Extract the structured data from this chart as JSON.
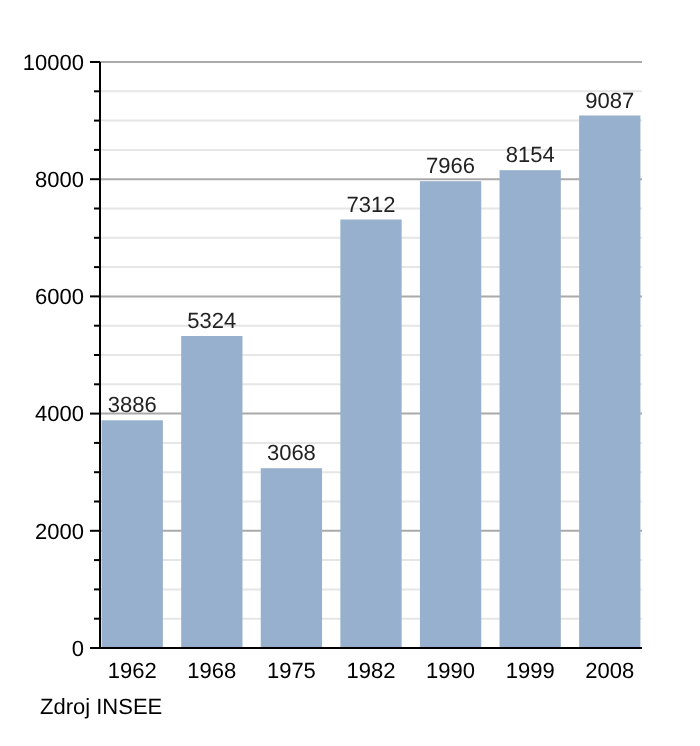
{
  "chart_data": {
    "type": "bar",
    "categories": [
      "1962",
      "1968",
      "1975",
      "1982",
      "1990",
      "1999",
      "2008"
    ],
    "values": [
      3886,
      5324,
      3068,
      7312,
      7966,
      8154,
      9087
    ],
    "color": "#97b0cd",
    "ylim": [
      0,
      10000
    ],
    "yticks": [
      0,
      {
        "value": 500,
        "label": null
      },
      {
        "value": 1000,
        "label": null
      },
      {
        "value": 1500,
        "label": null
      },
      2000,
      {
        "value": 2500,
        "label": null
      },
      {
        "value": 3000,
        "label": null
      },
      {
        "value": 3500,
        "label": null
      },
      4000,
      {
        "value": 4500,
        "label": null
      },
      {
        "value": 5000,
        "label": null
      },
      {
        "value": 5500,
        "label": null
      },
      6000,
      {
        "value": 6500,
        "label": null
      },
      {
        "value": 7000,
        "label": null
      },
      {
        "value": 7500,
        "label": null
      },
      8000,
      {
        "value": 8500,
        "label": null
      },
      {
        "value": 9000,
        "label": null
      },
      {
        "value": 9500,
        "label": null
      },
      10000
    ],
    "grid": "y",
    "data_labels": true,
    "annotations": [
      "Zdroj INSEE"
    ]
  }
}
